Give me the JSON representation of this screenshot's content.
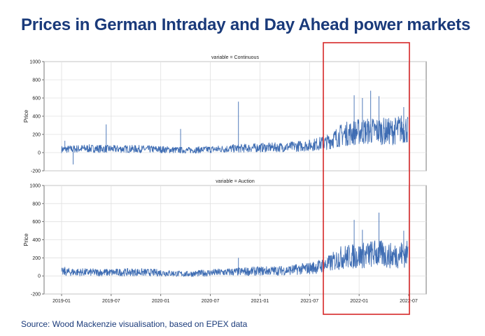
{
  "page": {
    "title": "Prices in German Intraday and Day Ahead power markets",
    "source": "Source: Wood Mackenzie visualisation, based on EPEX data"
  },
  "colors": {
    "title": "#1a3a7a",
    "series": "#3f6db3",
    "highlight": "#d62728",
    "grid": "#e0e0e0"
  },
  "chart_data": [
    {
      "type": "line",
      "title": "variable = Continuous",
      "xlabel": "",
      "ylabel": "Price",
      "ylim": [
        -200,
        1000
      ],
      "y_ticks": [
        -200,
        0,
        200,
        400,
        600,
        800,
        1000
      ],
      "x_ticks": [
        "2019-01",
        "2019-07",
        "2020-01",
        "2020-07",
        "2021-01",
        "2021-07",
        "2022-01",
        "2022-07"
      ],
      "xlim": [
        "2019-01",
        "2022-07"
      ],
      "grid": true,
      "series": [
        {
          "x": [
            "2019-01",
            "2019-04",
            "2019-07",
            "2019-10",
            "2020-01",
            "2020-04",
            "2020-07",
            "2020-10",
            "2021-01",
            "2021-04",
            "2021-07",
            "2021-09",
            "2021-11",
            "2022-01",
            "2022-03",
            "2022-05",
            "2022-06"
          ],
          "y": [
            35,
            45,
            40,
            40,
            35,
            25,
            35,
            45,
            55,
            60,
            80,
            110,
            200,
            230,
            240,
            230,
            260
          ]
        }
      ],
      "spikes": [
        {
          "x": "2019-01",
          "y": 130
        },
        {
          "x": "2019-02",
          "y": -130
        },
        {
          "x": "2019-06",
          "y": 310
        },
        {
          "x": "2020-03",
          "y": 260
        },
        {
          "x": "2020-10",
          "y": 560
        },
        {
          "x": "2021-12",
          "y": 630
        },
        {
          "x": "2022-01",
          "y": 600
        },
        {
          "x": "2022-02",
          "y": 680
        },
        {
          "x": "2022-03",
          "y": 620
        },
        {
          "x": "2022-06",
          "y": 500
        }
      ]
    },
    {
      "type": "line",
      "title": "variable = Auction",
      "xlabel": "",
      "ylabel": "Price",
      "ylim": [
        -200,
        1000
      ],
      "y_ticks": [
        -200,
        0,
        200,
        400,
        600,
        800,
        1000
      ],
      "x_ticks": [
        "2019-01",
        "2019-07",
        "2020-01",
        "2020-07",
        "2021-01",
        "2021-07",
        "2022-01",
        "2022-07"
      ],
      "xlim": [
        "2019-01",
        "2022-07"
      ],
      "grid": true,
      "series": [
        {
          "x": [
            "2019-01",
            "2019-04",
            "2019-07",
            "2019-10",
            "2020-01",
            "2020-04",
            "2020-07",
            "2020-10",
            "2021-01",
            "2021-04",
            "2021-07",
            "2021-09",
            "2021-11",
            "2022-01",
            "2022-03",
            "2022-05",
            "2022-06"
          ],
          "y": [
            45,
            40,
            38,
            42,
            35,
            20,
            35,
            45,
            55,
            60,
            85,
            120,
            210,
            220,
            250,
            220,
            240
          ]
        }
      ],
      "spikes": [
        {
          "x": "2019-01",
          "y": 100
        },
        {
          "x": "2020-10",
          "y": 200
        },
        {
          "x": "2021-12",
          "y": 620
        },
        {
          "x": "2022-01",
          "y": 510
        },
        {
          "x": "2022-03",
          "y": 700
        },
        {
          "x": "2022-06",
          "y": 500
        }
      ]
    }
  ]
}
